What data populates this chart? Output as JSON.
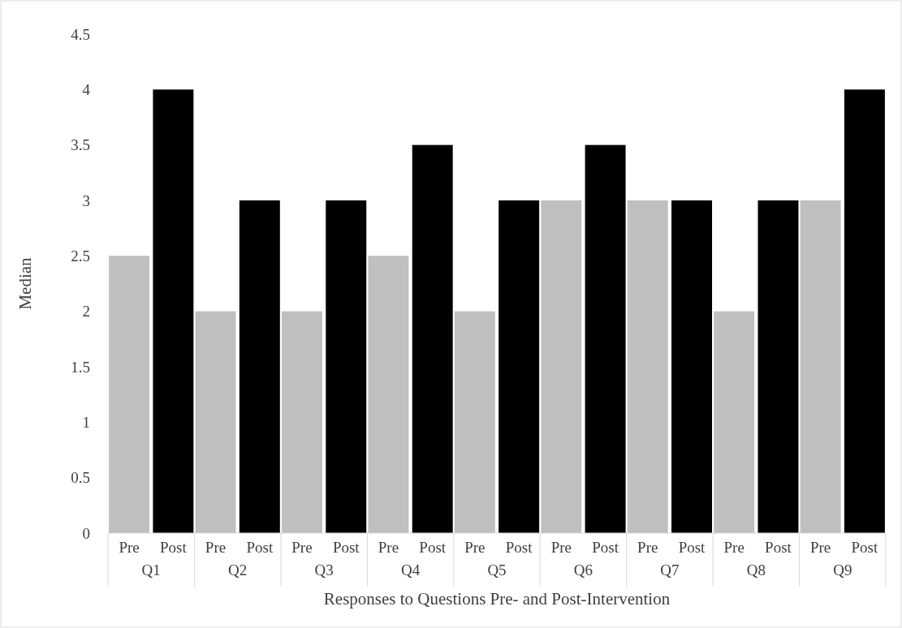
{
  "chart_data": {
    "type": "bar",
    "xlabel": "Responses to Questions Pre- and Post-Intervention",
    "ylabel": "Median",
    "categories": [
      "Q1",
      "Q2",
      "Q3",
      "Q4",
      "Q5",
      "Q6",
      "Q7",
      "Q8",
      "Q9"
    ],
    "series": [
      {
        "name": "Pre",
        "color": "#bfbfbf",
        "values": [
          2.5,
          2,
          2,
          2.5,
          2,
          3,
          3,
          2,
          3
        ]
      },
      {
        "name": "Post",
        "color": "#000000",
        "values": [
          4,
          3,
          3,
          3.5,
          3,
          3.5,
          3,
          3,
          4
        ]
      }
    ],
    "ylim": [
      0,
      4.5
    ],
    "yticks": [
      0,
      0.5,
      1,
      1.5,
      2,
      2.5,
      3,
      3.5,
      4,
      4.5
    ],
    "grid": false,
    "legend": false
  }
}
